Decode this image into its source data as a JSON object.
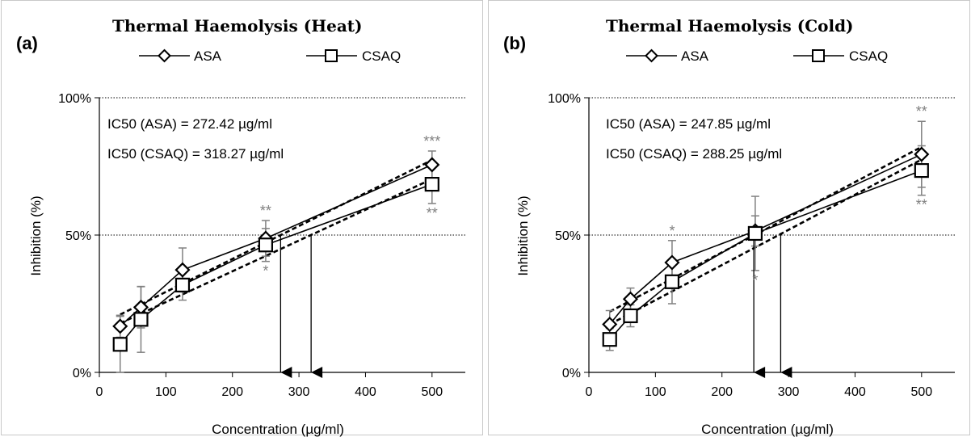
{
  "chart_data": [
    {
      "type": "line",
      "panel_label": "(a)",
      "title": "Thermal Haemolysis (Heat)",
      "xlabel": "Concentration (µg/ml)",
      "ylabel": "Inhibition (%)",
      "xlim": [
        0,
        550
      ],
      "ylim": [
        0,
        100
      ],
      "xticks": [
        0,
        100,
        200,
        300,
        400,
        500
      ],
      "yticks": [
        {
          "value": 0,
          "label": "0%"
        },
        {
          "value": 50,
          "label": "50%"
        },
        {
          "value": 100,
          "label": "100%"
        }
      ],
      "grid_y": [
        50,
        100
      ],
      "legend_position": "top",
      "x": [
        31.25,
        62.5,
        125,
        250,
        500
      ],
      "series": [
        {
          "name": "ASA",
          "marker": "diamond",
          "values": [
            16.8,
            23.7,
            37.3,
            48.8,
            75.6
          ],
          "errors": [
            4.0,
            7.5,
            8.0,
            6.5,
            5.0
          ],
          "stars": [
            "",
            "",
            "",
            "**",
            "***"
          ],
          "star_side": "above"
        },
        {
          "name": "CSAQ",
          "marker": "square",
          "values": [
            10.2,
            19.3,
            31.8,
            46.4,
            68.5
          ],
          "errors": [
            10.2,
            12.0,
            5.5,
            6.0,
            7.0
          ],
          "stars": [
            "",
            "",
            "",
            "*",
            "**"
          ],
          "star_side": "below"
        }
      ],
      "trendlines": [
        {
          "series": "ASA",
          "slope": 0.12,
          "intercept": 17.3
        },
        {
          "series": "CSAQ",
          "slope": 0.112,
          "intercept": 14.4
        }
      ],
      "ic50_arrows": [
        272.42,
        318.27
      ],
      "annotations": [
        "IC50 (ASA) = 272.42 µg/ml",
        "IC50 (CSAQ) = 318.27 µg/ml"
      ]
    },
    {
      "type": "line",
      "panel_label": "(b)",
      "title": "Thermal Haemolysis (Cold)",
      "xlabel": "Concentration (µg/ml)",
      "ylabel": "Inhibition (%)",
      "xlim": [
        0,
        550
      ],
      "ylim": [
        0,
        100
      ],
      "xticks": [
        0,
        100,
        200,
        300,
        400,
        500
      ],
      "yticks": [
        {
          "value": 0,
          "label": "0%"
        },
        {
          "value": 50,
          "label": "50%"
        },
        {
          "value": 100,
          "label": "100%"
        }
      ],
      "grid_y": [
        50,
        100
      ],
      "legend_position": "top",
      "x": [
        31.25,
        62.5,
        125,
        250,
        500
      ],
      "series": [
        {
          "name": "ASA",
          "marker": "diamond",
          "values": [
            17.5,
            26.7,
            40.0,
            51.5,
            79.4
          ],
          "errors": [
            5.0,
            4.0,
            8.0,
            5.5,
            12.0
          ],
          "stars": [
            "",
            "",
            "*",
            "",
            "**"
          ],
          "star_side": "above"
        },
        {
          "name": "CSAQ",
          "marker": "square",
          "values": [
            12.0,
            20.6,
            33.0,
            50.6,
            73.5
          ],
          "errors": [
            4.0,
            4.0,
            8.0,
            13.5,
            9.0
          ],
          "stars": [
            "",
            "",
            "",
            "*",
            "**"
          ],
          "star_side": "below"
        }
      ],
      "trendlines": [
        {
          "series": "ASA",
          "slope": 0.128,
          "intercept": 18.1
        },
        {
          "series": "CSAQ",
          "slope": 0.128,
          "intercept": 13.5
        }
      ],
      "ic50_arrows": [
        247.85,
        288.25
      ],
      "annotations": [
        "IC50 (ASA) = 247.85 µg/ml",
        "IC50 (CSAQ) = 288.25 µg/ml"
      ]
    }
  ],
  "colors": {
    "line": "#000000",
    "error_bar": "#808080",
    "star": "#808080",
    "grid": "#000000",
    "border": "#c8c8c8"
  }
}
